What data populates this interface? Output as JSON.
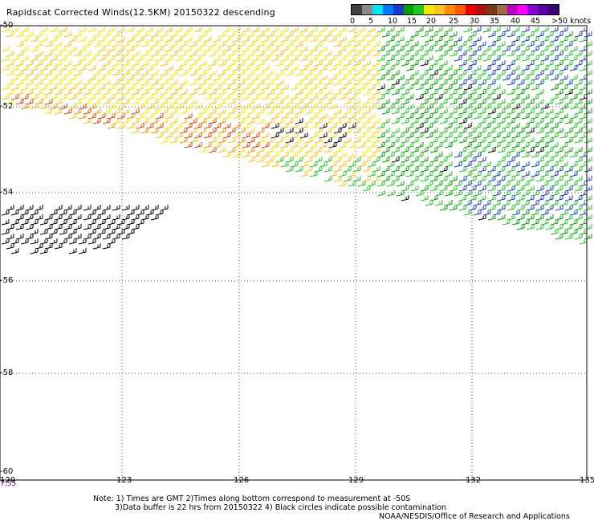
{
  "title": "Rapidscat Corrected Winds(12.5KM) 20150322 descending",
  "colorbar": {
    "colors": [
      "#404040",
      "#8a8a8a",
      "#00e5f5",
      "#0077ff",
      "#1a3cc8",
      "#00a000",
      "#1fc71f",
      "#f5e600",
      "#ffc21a",
      "#ff8c00",
      "#ff5a00",
      "#e60000",
      "#b01010",
      "#7a3a10",
      "#a06a4a",
      "#c000c0",
      "#ff00ff",
      "#8a00d0",
      "#5a00a0",
      "#3a0070"
    ],
    "labels": [
      "0",
      "5",
      "10",
      "15",
      "20",
      "25",
      "30",
      "35",
      "40",
      "45",
      ">50 knots"
    ]
  },
  "axes": {
    "lon_ticks": [
      "120",
      "123",
      "126",
      "129",
      "132",
      "135"
    ],
    "lat_ticks": [
      "-50",
      "-52",
      "-54",
      "-56",
      "-58",
      "-60"
    ]
  },
  "time_label": "7:55",
  "notes": [
    "Note: 1) Times are GMT 2)Times along bottom correspond to measurement at -50S",
    "3)Data buffer is 22 hrs from 20150322 4) Black circles indicate possible contamination",
    "NOAA/NESDIS/Office of Research and Applications"
  ]
}
